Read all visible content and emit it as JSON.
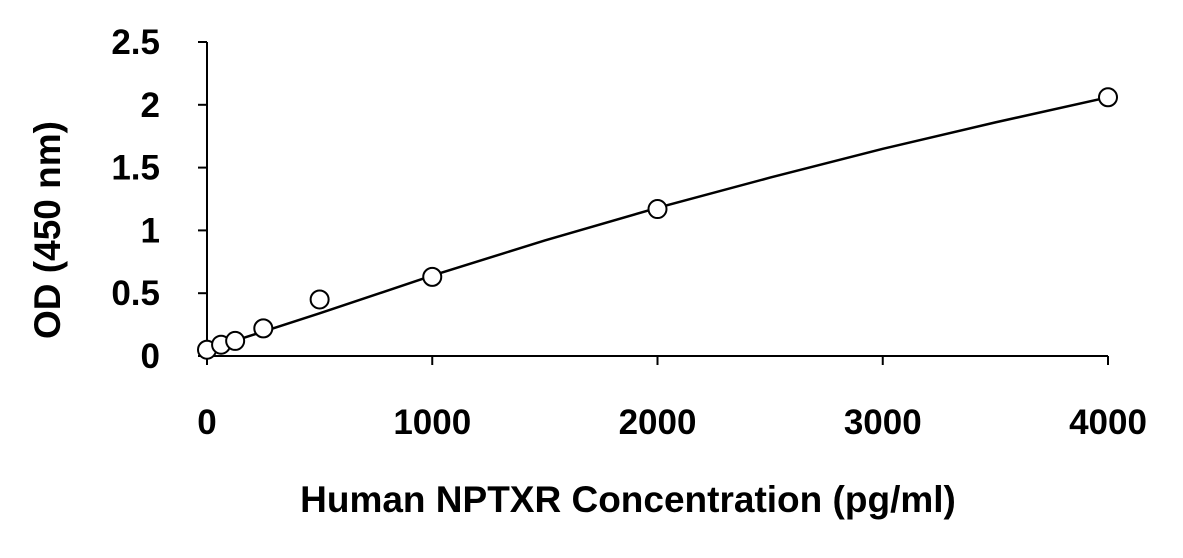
{
  "chart_data": {
    "type": "scatter",
    "title": "",
    "xlabel": "Human NPTXR Concentration (pg/ml)",
    "ylabel": "OD (450 nm)",
    "xlim": [
      0,
      4000
    ],
    "ylim": [
      0,
      2.5
    ],
    "x_ticks": [
      "0",
      "1000",
      "2000",
      "3000",
      "4000"
    ],
    "y_ticks": [
      "0",
      "0.5",
      "1",
      "1.5",
      "2",
      "2.5"
    ],
    "x_tick_values": [
      0,
      1000,
      2000,
      3000,
      4000
    ],
    "y_tick_values": [
      0,
      0.5,
      1,
      1.5,
      2,
      2.5
    ],
    "grid": false,
    "legend": "none",
    "series": [
      {
        "marker": "open-circle",
        "color": "#000000",
        "x": [
          0,
          62.5,
          125,
          250,
          500,
          1000,
          2000,
          4000
        ],
        "y": [
          0.05,
          0.09,
          0.12,
          0.22,
          0.45,
          0.63,
          1.17,
          2.06
        ]
      }
    ],
    "fit_curve": {
      "color": "#000000",
      "x": [
        0,
        500,
        1000,
        1500,
        2000,
        2500,
        3000,
        3500,
        4000
      ],
      "y": [
        0.05,
        0.34,
        0.64,
        0.92,
        1.18,
        1.42,
        1.65,
        1.86,
        2.06
      ]
    }
  }
}
